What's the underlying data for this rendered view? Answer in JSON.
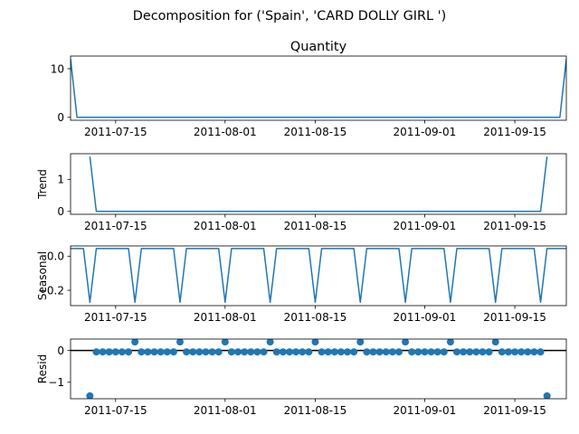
{
  "figure": {
    "suptitle": "Decomposition for ('Spain', 'CARD DOLLY GIRL ')"
  },
  "colors": {
    "series": "#1f77b4",
    "zero_line": "#000000",
    "axis": "#000000",
    "background": "#ffffff"
  },
  "chart_data": [
    {
      "type": "line",
      "title": "Quantity",
      "ylabel": "",
      "x": [
        "2011-07-08",
        "2011-07-09",
        "2011-07-10",
        "2011-07-11",
        "2011-07-12",
        "2011-07-13",
        "2011-07-14",
        "2011-07-15",
        "2011-07-16",
        "2011-07-17",
        "2011-07-18",
        "2011-07-19",
        "2011-07-20",
        "2011-07-21",
        "2011-07-22",
        "2011-07-23",
        "2011-07-24",
        "2011-07-25",
        "2011-07-26",
        "2011-07-27",
        "2011-07-28",
        "2011-07-29",
        "2011-07-30",
        "2011-07-31",
        "2011-08-01",
        "2011-08-02",
        "2011-08-03",
        "2011-08-04",
        "2011-08-05",
        "2011-08-06",
        "2011-08-07",
        "2011-08-08",
        "2011-08-09",
        "2011-08-10",
        "2011-08-11",
        "2011-08-12",
        "2011-08-13",
        "2011-08-14",
        "2011-08-15",
        "2011-08-16",
        "2011-08-17",
        "2011-08-18",
        "2011-08-19",
        "2011-08-20",
        "2011-08-21",
        "2011-08-22",
        "2011-08-23",
        "2011-08-24",
        "2011-08-25",
        "2011-08-26",
        "2011-08-27",
        "2011-08-28",
        "2011-08-29",
        "2011-08-30",
        "2011-08-31",
        "2011-09-01",
        "2011-09-02",
        "2011-09-03",
        "2011-09-04",
        "2011-09-05",
        "2011-09-06",
        "2011-09-07",
        "2011-09-08",
        "2011-09-09",
        "2011-09-10",
        "2011-09-11",
        "2011-09-12",
        "2011-09-13",
        "2011-09-14",
        "2011-09-15",
        "2011-09-16",
        "2011-09-17",
        "2011-09-18",
        "2011-09-19",
        "2011-09-20",
        "2011-09-21",
        "2011-09-22",
        "2011-09-23"
      ],
      "series": [
        {
          "values": [
            12,
            0,
            0,
            0,
            0,
            0,
            0,
            0,
            0,
            0,
            0,
            0,
            0,
            0,
            0,
            0,
            0,
            0,
            0,
            0,
            0,
            0,
            0,
            0,
            0,
            0,
            0,
            0,
            0,
            0,
            0,
            0,
            0,
            0,
            0,
            0,
            0,
            0,
            0,
            0,
            0,
            0,
            0,
            0,
            0,
            0,
            0,
            0,
            0,
            0,
            0,
            0,
            0,
            0,
            0,
            0,
            0,
            0,
            0,
            0,
            0,
            0,
            0,
            0,
            0,
            0,
            0,
            0,
            0,
            0,
            0,
            0,
            0,
            0,
            0,
            0,
            0,
            12
          ]
        }
      ],
      "ylim": [
        -0.6,
        12.6
      ],
      "yticks": [
        "0",
        "10"
      ],
      "xticks": [
        "2011-07-15",
        "2011-08-01",
        "2011-08-15",
        "2011-09-01",
        "2011-09-15"
      ],
      "grid": false
    },
    {
      "type": "line",
      "title": "",
      "ylabel": "Trend",
      "x": [
        "2011-07-11",
        "2011-07-12",
        "2011-07-13",
        "2011-07-14",
        "2011-07-15",
        "2011-07-16",
        "2011-07-17",
        "2011-07-18",
        "2011-07-19",
        "2011-07-20",
        "2011-07-21",
        "2011-07-22",
        "2011-07-23",
        "2011-07-24",
        "2011-07-25",
        "2011-07-26",
        "2011-07-27",
        "2011-07-28",
        "2011-07-29",
        "2011-07-30",
        "2011-07-31",
        "2011-08-01",
        "2011-08-02",
        "2011-08-03",
        "2011-08-04",
        "2011-08-05",
        "2011-08-06",
        "2011-08-07",
        "2011-08-08",
        "2011-08-09",
        "2011-08-10",
        "2011-08-11",
        "2011-08-12",
        "2011-08-13",
        "2011-08-14",
        "2011-08-15",
        "2011-08-16",
        "2011-08-17",
        "2011-08-18",
        "2011-08-19",
        "2011-08-20",
        "2011-08-21",
        "2011-08-22",
        "2011-08-23",
        "2011-08-24",
        "2011-08-25",
        "2011-08-26",
        "2011-08-27",
        "2011-08-28",
        "2011-08-29",
        "2011-08-30",
        "2011-08-31",
        "2011-09-01",
        "2011-09-02",
        "2011-09-03",
        "2011-09-04",
        "2011-09-05",
        "2011-09-06",
        "2011-09-07",
        "2011-09-08",
        "2011-09-09",
        "2011-09-10",
        "2011-09-11",
        "2011-09-12",
        "2011-09-13",
        "2011-09-14",
        "2011-09-15",
        "2011-09-16",
        "2011-09-17",
        "2011-09-18",
        "2011-09-19",
        "2011-09-20"
      ],
      "series": [
        {
          "values": [
            1.71,
            0,
            0,
            0,
            0,
            0,
            0,
            0,
            0,
            0,
            0,
            0,
            0,
            0,
            0,
            0,
            0,
            0,
            0,
            0,
            0,
            0,
            0,
            0,
            0,
            0,
            0,
            0,
            0,
            0,
            0,
            0,
            0,
            0,
            0,
            0,
            0,
            0,
            0,
            0,
            0,
            0,
            0,
            0,
            0,
            0,
            0,
            0,
            0,
            0,
            0,
            0,
            0,
            0,
            0,
            0,
            0,
            0,
            0,
            0,
            0,
            0,
            0,
            0,
            0,
            0,
            0,
            0,
            0,
            0,
            0,
            1.71
          ]
        }
      ],
      "ylim": [
        -0.09,
        1.8
      ],
      "yticks": [
        "0",
        "1"
      ],
      "xticks": [
        "2011-07-15",
        "2011-08-01",
        "2011-08-15",
        "2011-09-01",
        "2011-09-15"
      ],
      "grid": false
    },
    {
      "type": "line",
      "title": "",
      "ylabel": "Seasonal",
      "x": [
        "2011-07-08",
        "2011-07-09",
        "2011-07-10",
        "2011-07-11",
        "2011-07-12",
        "2011-07-13",
        "2011-07-14",
        "2011-07-15",
        "2011-07-16",
        "2011-07-17",
        "2011-07-18",
        "2011-07-19",
        "2011-07-20",
        "2011-07-21",
        "2011-07-22",
        "2011-07-23",
        "2011-07-24",
        "2011-07-25",
        "2011-07-26",
        "2011-07-27",
        "2011-07-28",
        "2011-07-29",
        "2011-07-30",
        "2011-07-31",
        "2011-08-01",
        "2011-08-02",
        "2011-08-03",
        "2011-08-04",
        "2011-08-05",
        "2011-08-06",
        "2011-08-07",
        "2011-08-08",
        "2011-08-09",
        "2011-08-10",
        "2011-08-11",
        "2011-08-12",
        "2011-08-13",
        "2011-08-14",
        "2011-08-15",
        "2011-08-16",
        "2011-08-17",
        "2011-08-18",
        "2011-08-19",
        "2011-08-20",
        "2011-08-21",
        "2011-08-22",
        "2011-08-23",
        "2011-08-24",
        "2011-08-25",
        "2011-08-26",
        "2011-08-27",
        "2011-08-28",
        "2011-08-29",
        "2011-08-30",
        "2011-08-31",
        "2011-09-01",
        "2011-09-02",
        "2011-09-03",
        "2011-09-04",
        "2011-09-05",
        "2011-09-06",
        "2011-09-07",
        "2011-09-08",
        "2011-09-09",
        "2011-09-10",
        "2011-09-11",
        "2011-09-12",
        "2011-09-13",
        "2011-09-14",
        "2011-09-15",
        "2011-09-16",
        "2011-09-17",
        "2011-09-18",
        "2011-09-19",
        "2011-09-20",
        "2011-09-21",
        "2011-09-22",
        "2011-09-23"
      ],
      "series": [
        {
          "values": [
            0.045,
            0.045,
            0.045,
            -0.27,
            0.045,
            0.045,
            0.045,
            0.045,
            0.045,
            0.045,
            -0.27,
            0.045,
            0.045,
            0.045,
            0.045,
            0.045,
            0.045,
            -0.27,
            0.045,
            0.045,
            0.045,
            0.045,
            0.045,
            0.045,
            -0.27,
            0.045,
            0.045,
            0.045,
            0.045,
            0.045,
            0.045,
            -0.27,
            0.045,
            0.045,
            0.045,
            0.045,
            0.045,
            0.045,
            -0.27,
            0.045,
            0.045,
            0.045,
            0.045,
            0.045,
            0.045,
            -0.27,
            0.045,
            0.045,
            0.045,
            0.045,
            0.045,
            0.045,
            -0.27,
            0.045,
            0.045,
            0.045,
            0.045,
            0.045,
            0.045,
            -0.27,
            0.045,
            0.045,
            0.045,
            0.045,
            0.045,
            0.045,
            -0.27,
            0.045,
            0.045,
            0.045,
            0.045,
            0.045,
            0.045,
            -0.27,
            0.045,
            0.045,
            0.045,
            0.045
          ]
        }
      ],
      "ylim": [
        -0.29,
        0.06
      ],
      "yticks": [
        "0.0",
        "−0.2"
      ],
      "ytick_values": [
        0,
        -0.2
      ],
      "xticks": [
        "2011-07-15",
        "2011-08-01",
        "2011-08-15",
        "2011-09-01",
        "2011-09-15"
      ],
      "grid": false
    },
    {
      "type": "scatter",
      "title": "",
      "ylabel": "Resid",
      "x": [
        "2011-07-11",
        "2011-07-12",
        "2011-07-13",
        "2011-07-14",
        "2011-07-15",
        "2011-07-16",
        "2011-07-17",
        "2011-07-18",
        "2011-07-19",
        "2011-07-20",
        "2011-07-21",
        "2011-07-22",
        "2011-07-23",
        "2011-07-24",
        "2011-07-25",
        "2011-07-26",
        "2011-07-27",
        "2011-07-28",
        "2011-07-29",
        "2011-07-30",
        "2011-07-31",
        "2011-08-01",
        "2011-08-02",
        "2011-08-03",
        "2011-08-04",
        "2011-08-05",
        "2011-08-06",
        "2011-08-07",
        "2011-08-08",
        "2011-08-09",
        "2011-08-10",
        "2011-08-11",
        "2011-08-12",
        "2011-08-13",
        "2011-08-14",
        "2011-08-15",
        "2011-08-16",
        "2011-08-17",
        "2011-08-18",
        "2011-08-19",
        "2011-08-20",
        "2011-08-21",
        "2011-08-22",
        "2011-08-23",
        "2011-08-24",
        "2011-08-25",
        "2011-08-26",
        "2011-08-27",
        "2011-08-28",
        "2011-08-29",
        "2011-08-30",
        "2011-08-31",
        "2011-09-01",
        "2011-09-02",
        "2011-09-03",
        "2011-09-04",
        "2011-09-05",
        "2011-09-06",
        "2011-09-07",
        "2011-09-08",
        "2011-09-09",
        "2011-09-10",
        "2011-09-11",
        "2011-09-12",
        "2011-09-13",
        "2011-09-14",
        "2011-09-15",
        "2011-09-16",
        "2011-09-17",
        "2011-09-18",
        "2011-09-19",
        "2011-09-20"
      ],
      "series": [
        {
          "values": [
            -1.43,
            -0.045,
            -0.045,
            -0.045,
            -0.045,
            -0.045,
            -0.045,
            0.27,
            -0.045,
            -0.045,
            -0.045,
            -0.045,
            -0.045,
            -0.045,
            0.27,
            -0.045,
            -0.045,
            -0.045,
            -0.045,
            -0.045,
            -0.045,
            0.27,
            -0.045,
            -0.045,
            -0.045,
            -0.045,
            -0.045,
            -0.045,
            0.27,
            -0.045,
            -0.045,
            -0.045,
            -0.045,
            -0.045,
            -0.045,
            0.27,
            -0.045,
            -0.045,
            -0.045,
            -0.045,
            -0.045,
            -0.045,
            0.27,
            -0.045,
            -0.045,
            -0.045,
            -0.045,
            -0.045,
            -0.045,
            0.27,
            -0.045,
            -0.045,
            -0.045,
            -0.045,
            -0.045,
            -0.045,
            0.27,
            -0.045,
            -0.045,
            -0.045,
            -0.045,
            -0.045,
            -0.045,
            0.27,
            -0.045,
            -0.045,
            -0.045,
            -0.045,
            -0.045,
            -0.045,
            -0.045,
            -1.43
          ]
        }
      ],
      "ylim": [
        -1.52,
        0.36
      ],
      "yticks": [
        "0",
        "−1"
      ],
      "ytick_values": [
        0,
        -1
      ],
      "zero_line": 0,
      "xticks": [
        "2011-07-15",
        "2011-08-01",
        "2011-08-15",
        "2011-09-01",
        "2011-09-15"
      ],
      "grid": false
    }
  ]
}
